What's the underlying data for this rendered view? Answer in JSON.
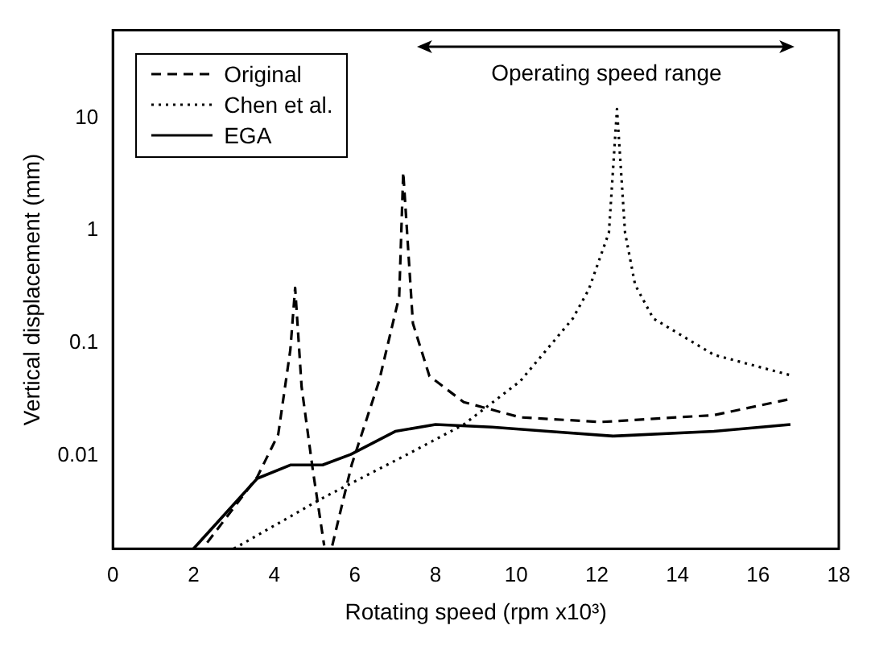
{
  "chart_data": {
    "type": "line",
    "xlabel": "Rotating speed (rpm x10³)",
    "ylabel": "Vertical displacement (mm)",
    "xlim": [
      0,
      18
    ],
    "xticks": [
      0,
      2,
      4,
      6,
      8,
      10,
      12,
      14,
      16,
      18
    ],
    "ylim": [
      0.0015,
      60
    ],
    "yticks": [
      0.01,
      0.1,
      1,
      10
    ],
    "log": "y",
    "grid": false,
    "legend": "top left",
    "marker": "none",
    "annotations": [
      "Operating speed range"
    ],
    "series": [
      {
        "name": "Original",
        "color": "#000000",
        "line_style": "dashed",
        "x": [
          2.34,
          3.58,
          4.1,
          4.4,
          4.52,
          4.68,
          4.96,
          5.24,
          5.34,
          5.44,
          5.92,
          6.6,
          7.1,
          7.2,
          7.44,
          7.85,
          8.7,
          10.1,
          12.1,
          14.9,
          16.8
        ],
        "values": [
          0.0017,
          0.0065,
          0.0155,
          0.087,
          0.31,
          0.041,
          0.0074,
          0.0016,
          null,
          0.0016,
          0.0083,
          0.046,
          0.26,
          3.3,
          0.15,
          0.051,
          0.03,
          0.022,
          0.02,
          0.023,
          0.032
        ]
      },
      {
        "name": "Chen et al.",
        "color": "#000000",
        "line_style": "dotted",
        "x": [
          3.0,
          5.24,
          7.3,
          8.7,
          10.1,
          11.4,
          11.8,
          12.3,
          12.5,
          12.7,
          12.95,
          13.4,
          14.9,
          16.8
        ],
        "values": [
          0.0015,
          0.0043,
          0.0103,
          0.019,
          0.046,
          0.165,
          0.3,
          0.96,
          12,
          0.96,
          0.33,
          0.166,
          0.079,
          0.052
        ]
      },
      {
        "name": "EGA",
        "color": "#000000",
        "line_style": "solid",
        "x": [
          2.0,
          3.58,
          4.4,
          5.2,
          5.9,
          7.0,
          8.0,
          9.4,
          10.8,
          12.4,
          14.9,
          16.8
        ],
        "values": [
          0.0015,
          0.0063,
          0.0083,
          0.0083,
          0.0103,
          0.0165,
          0.019,
          0.018,
          0.0165,
          0.015,
          0.0165,
          0.019
        ]
      }
    ]
  }
}
